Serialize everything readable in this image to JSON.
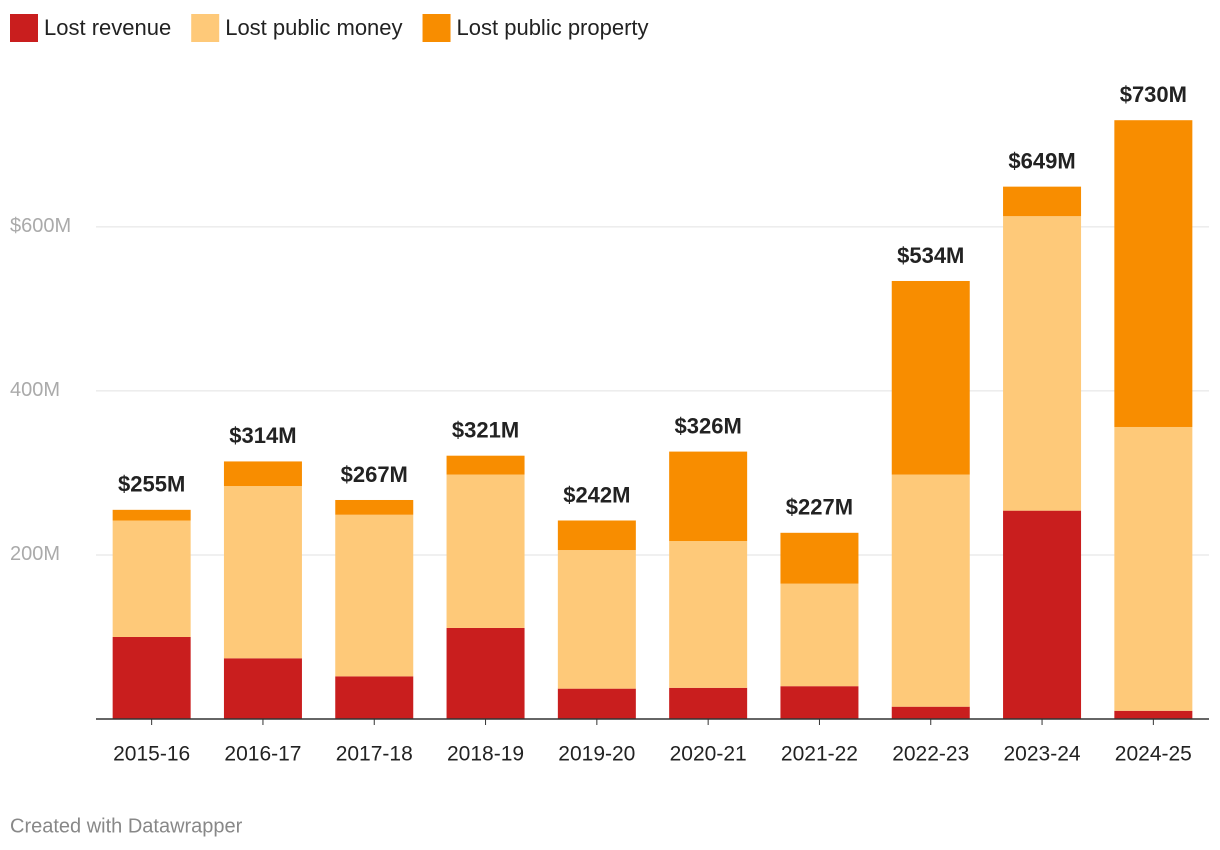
{
  "chart_data": {
    "type": "stacked_bar",
    "categories": [
      "2015-16",
      "2016-17",
      "2017-18",
      "2018-19",
      "2019-20",
      "2020-21",
      "2021-22",
      "2022-23",
      "2023-24",
      "2024-25"
    ],
    "series": [
      {
        "name": "Lost revenue",
        "color": "#c91e1e",
        "values": [
          100,
          74,
          52,
          111,
          37,
          38,
          40,
          15,
          254,
          10
        ]
      },
      {
        "name": "Lost public money",
        "color": "#fec979",
        "values": [
          142,
          210,
          197,
          187,
          169,
          179,
          125,
          283,
          359,
          346
        ]
      },
      {
        "name": "Lost public property",
        "color": "#f88d00",
        "values": [
          13,
          30,
          18,
          23,
          36,
          109,
          62,
          236,
          36,
          374
        ]
      }
    ],
    "totals": {
      "values": [
        255,
        314,
        267,
        321,
        242,
        326,
        227,
        534,
        649,
        730
      ],
      "value_labels": [
        "$255M",
        "$314M",
        "$267M",
        "$321M",
        "$242M",
        "$326M",
        "$227M",
        "$534M",
        "$649M",
        "$730M"
      ]
    },
    "ylim": [
      0,
      740
    ],
    "yticks": [
      {
        "value": 200,
        "label": "200M"
      },
      {
        "value": 400,
        "label": "400M"
      },
      {
        "value": 600,
        "label": "$600M"
      }
    ],
    "grid": true,
    "legend": "top",
    "footer": "Created with Datawrapper"
  }
}
